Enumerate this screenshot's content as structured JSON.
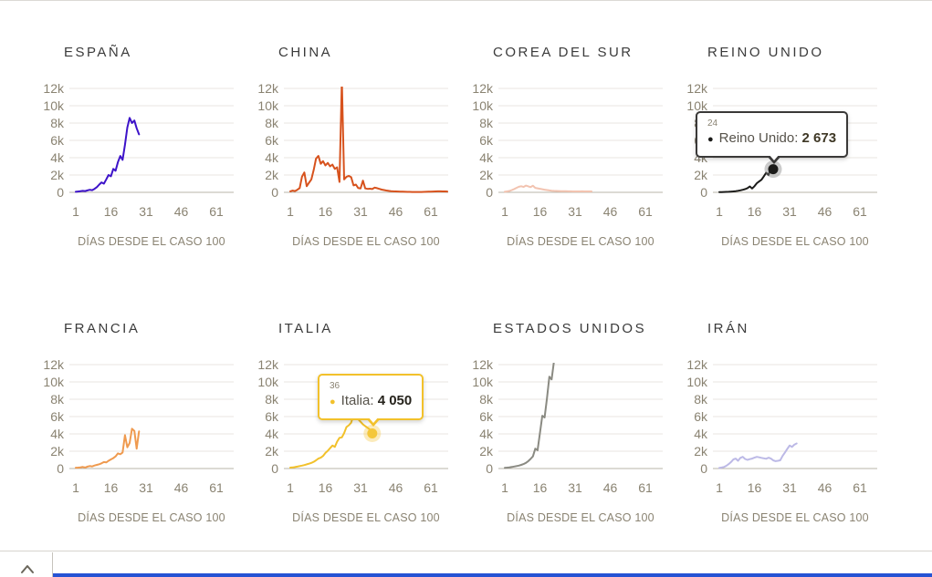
{
  "axis": {
    "y_ticks": [
      "12k",
      "10k",
      "8k",
      "6k",
      "4k",
      "2k",
      "0"
    ],
    "x_ticks": [
      "1",
      "16",
      "31",
      "46",
      "61"
    ],
    "x_tick_days": [
      1,
      16,
      31,
      46,
      61
    ],
    "x_label": "DÍAS DESDE EL CASO 100",
    "y_max": 12000,
    "grid": true
  },
  "colors": {
    "grid_line": "#e9e6e0",
    "baseline": "#bab5a9",
    "tick_text": "#8a8372",
    "title_text": "#3b3b3b"
  },
  "chart_data": [
    {
      "type": "line",
      "title": "ESPAÑA",
      "color": "#3d13c9",
      "ylim": [
        0,
        12000
      ],
      "x_start_day": 1,
      "values": [
        60,
        90,
        130,
        170,
        150,
        220,
        300,
        250,
        400,
        600,
        900,
        1150,
        1000,
        1500,
        2000,
        1850,
        2700,
        2500,
        3500,
        4200,
        3750,
        5500,
        7500,
        8600,
        8000,
        8300,
        7400,
        6700
      ]
    },
    {
      "type": "line",
      "title": "CHINA",
      "color": "#d7521d",
      "ylim": [
        0,
        12000
      ],
      "x_start_day": 1,
      "values": [
        120,
        200,
        150,
        300,
        500,
        1800,
        2300,
        700,
        1100,
        1500,
        2600,
        3900,
        4200,
        3300,
        3600,
        3100,
        3400,
        3000,
        3200,
        2700,
        2900,
        1200,
        12900,
        1500,
        1800,
        1900,
        1750,
        800,
        900,
        500,
        450,
        1350,
        450,
        400,
        420,
        380,
        550,
        480,
        400,
        320,
        260,
        210,
        170,
        140,
        120,
        100,
        90,
        80,
        70,
        60,
        55,
        50,
        45,
        45,
        40,
        40,
        45,
        55,
        65,
        75,
        85,
        95,
        105,
        115,
        120,
        110,
        100,
        95
      ]
    },
    {
      "type": "line",
      "title": "COREA DEL SUR",
      "color": "#f2c3b0",
      "ylim": [
        0,
        12000
      ],
      "x_start_day": 1,
      "values": [
        60,
        110,
        160,
        260,
        380,
        520,
        640,
        700,
        620,
        780,
        690,
        600,
        760,
        520,
        460,
        410,
        360,
        310,
        260,
        220,
        190,
        170,
        160,
        150,
        140,
        130,
        125,
        120,
        115,
        110,
        105,
        100,
        110,
        120,
        110,
        100,
        105,
        110
      ]
    },
    {
      "type": "line",
      "title": "REINO UNIDO",
      "color": "#1b1b19",
      "ylim": [
        0,
        12000
      ],
      "x_start_day": 1,
      "values": [
        30,
        35,
        45,
        55,
        65,
        80,
        100,
        140,
        180,
        230,
        290,
        370,
        480,
        680,
        440,
        700,
        1050,
        1250,
        1450,
        1850,
        2250,
        2000,
        2900,
        2673
      ],
      "tooltip": {
        "day": 24,
        "value": 2673,
        "day_label": "24",
        "series_label": "Reino Unido:",
        "value_label": "2 673",
        "bullet_glyph": "●",
        "border_color": "#3a3938",
        "bullet_color": "#1b1b19",
        "label_color": "#56524a",
        "value_color": "#3f3826",
        "halo_color": "rgba(130,130,130,0.42)",
        "dot_color": "#1b1b19",
        "box": {
          "left": 17,
          "top": 82,
          "caret_x": 84
        }
      }
    },
    {
      "type": "line",
      "title": "FRANCIA",
      "color": "#ef9a4f",
      "ylim": [
        0,
        12000
      ],
      "x_start_day": 1,
      "values": [
        90,
        110,
        140,
        180,
        120,
        220,
        280,
        240,
        350,
        420,
        500,
        600,
        750,
        700,
        900,
        1050,
        1200,
        1400,
        1750,
        1650,
        1850,
        3850,
        2450,
        2950,
        4600,
        4350,
        2300,
        4300
      ]
    },
    {
      "type": "line",
      "title": "ITALIA",
      "color": "#f2c12b",
      "ylim": [
        0,
        12000
      ],
      "x_start_day": 1,
      "values": [
        100,
        130,
        170,
        220,
        280,
        340,
        400,
        480,
        560,
        650,
        780,
        950,
        1150,
        1250,
        1450,
        1800,
        2050,
        2350,
        2650,
        2500,
        3100,
        3550,
        3600,
        4100,
        4800,
        5000,
        5300,
        6200,
        6000,
        5700,
        5400,
        5100,
        4900,
        4700,
        4500,
        4050
      ],
      "tooltip": {
        "day": 36,
        "value": 4050,
        "day_label": "36",
        "series_label": "Italia:",
        "value_label": "4 050",
        "bullet_glyph": "●",
        "border_color": "#f2c12b",
        "bullet_color": "#f2c12b",
        "label_color": "#56524a",
        "value_color": "#26231c",
        "halo_color": "rgba(242,194,46,0.32)",
        "dot_color": "#f4c73a",
        "box": {
          "left": 73,
          "top": 67,
          "caret_x": 59
        }
      }
    },
    {
      "type": "line",
      "title": "ESTADOS UNIDOS",
      "color": "#8a8a82",
      "ylim": [
        0,
        12000
      ],
      "x_start_day": 1,
      "values": [
        80,
        110,
        140,
        180,
        230,
        280,
        340,
        420,
        520,
        650,
        850,
        1100,
        1400,
        2300,
        2100,
        4100,
        6100,
        5900,
        8100,
        10600,
        10300,
        12400
      ]
    },
    {
      "type": "line",
      "title": "IRÁN",
      "color": "#bcb9e6",
      "ylim": [
        0,
        12000
      ],
      "x_start_day": 1,
      "values": [
        60,
        120,
        180,
        320,
        520,
        750,
        1050,
        1150,
        900,
        1230,
        1350,
        1100,
        1000,
        1080,
        1150,
        1250,
        1350,
        1300,
        1230,
        1180,
        1130,
        1250,
        1150,
        950,
        850,
        900,
        950,
        1450,
        1850,
        2250,
        2650,
        2500,
        2750,
        2900
      ]
    }
  ],
  "footer": {
    "divider_color": "#d7d4ce",
    "vline_color": "#c6c3bc",
    "chevron_color": "#6a665b",
    "accent_bar_color": "#2653d4"
  }
}
